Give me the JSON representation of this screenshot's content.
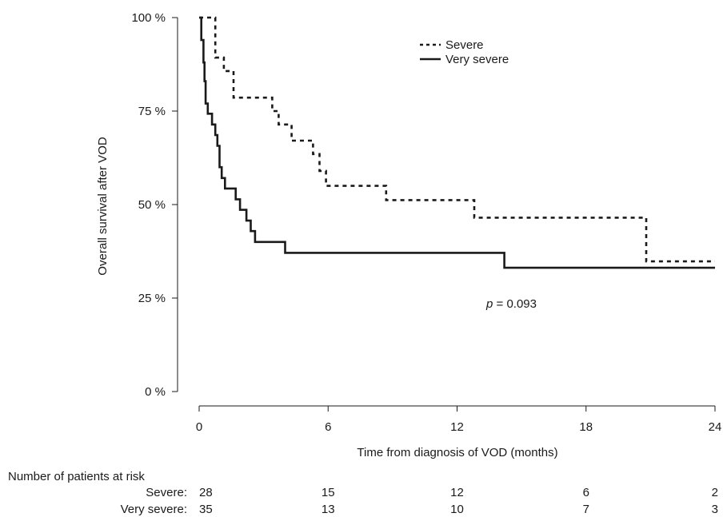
{
  "chart_data": {
    "type": "line",
    "subtype": "kaplan-meier step",
    "ylabel": "Overall survival after VOD",
    "xlabel": "Time from diagnosis of VOD (months)",
    "xlim": [
      0,
      24
    ],
    "ylim": [
      0,
      100
    ],
    "x_ticks": [
      0,
      6,
      12,
      18,
      24
    ],
    "y_ticks": [
      0,
      25,
      50,
      75,
      100
    ],
    "y_tick_labels": [
      "0 %",
      "25 %",
      "50 %",
      "75 %",
      "100 %"
    ],
    "grid": false,
    "legend_position": "top-right",
    "annotation": {
      "p_label": "p",
      "p_rest": " = 0.093"
    },
    "series": [
      {
        "name": "Severe",
        "style": "dashed",
        "points": [
          [
            0,
            100
          ],
          [
            0.75,
            100
          ],
          [
            0.75,
            89.3
          ],
          [
            1.15,
            89.3
          ],
          [
            1.15,
            85.7
          ],
          [
            1.6,
            85.7
          ],
          [
            1.6,
            78.6
          ],
          [
            3.4,
            78.6
          ],
          [
            3.4,
            75
          ],
          [
            3.7,
            75
          ],
          [
            3.7,
            71.4
          ],
          [
            4.3,
            71.4
          ],
          [
            4.3,
            67.1
          ],
          [
            5.3,
            67.1
          ],
          [
            5.3,
            63.5
          ],
          [
            5.6,
            63.5
          ],
          [
            5.6,
            59
          ],
          [
            5.9,
            59
          ],
          [
            5.9,
            55
          ],
          [
            8.7,
            55
          ],
          [
            8.7,
            51.2
          ],
          [
            12.8,
            51.2
          ],
          [
            12.8,
            46.5
          ],
          [
            20.8,
            46.5
          ],
          [
            20.8,
            34.8
          ],
          [
            24,
            34.8
          ]
        ]
      },
      {
        "name": "Very severe",
        "style": "solid",
        "points": [
          [
            0,
            100
          ],
          [
            0.1,
            100
          ],
          [
            0.1,
            94
          ],
          [
            0.2,
            94
          ],
          [
            0.2,
            88
          ],
          [
            0.25,
            88
          ],
          [
            0.25,
            83
          ],
          [
            0.3,
            83
          ],
          [
            0.3,
            77
          ],
          [
            0.4,
            77
          ],
          [
            0.4,
            74.3
          ],
          [
            0.6,
            74.3
          ],
          [
            0.6,
            71.4
          ],
          [
            0.75,
            71.4
          ],
          [
            0.75,
            68.6
          ],
          [
            0.85,
            68.6
          ],
          [
            0.85,
            65.7
          ],
          [
            0.95,
            65.7
          ],
          [
            0.95,
            60
          ],
          [
            1.05,
            60
          ],
          [
            1.05,
            57.1
          ],
          [
            1.2,
            57.1
          ],
          [
            1.2,
            54.3
          ],
          [
            1.7,
            54.3
          ],
          [
            1.7,
            51.4
          ],
          [
            1.9,
            51.4
          ],
          [
            1.9,
            48.6
          ],
          [
            2.2,
            48.6
          ],
          [
            2.2,
            45.7
          ],
          [
            2.4,
            45.7
          ],
          [
            2.4,
            42.9
          ],
          [
            2.6,
            42.9
          ],
          [
            2.6,
            40
          ],
          [
            4,
            40
          ],
          [
            4,
            37.1
          ],
          [
            14.2,
            37.1
          ],
          [
            14.2,
            33.1
          ],
          [
            24,
            33.1
          ]
        ]
      }
    ],
    "risk_table": {
      "title": "Number of patients at risk",
      "rows": [
        {
          "label": "Severe:",
          "values": [
            28,
            15,
            12,
            6,
            2
          ]
        },
        {
          "label": "Very severe:",
          "values": [
            35,
            13,
            10,
            7,
            3
          ]
        }
      ]
    }
  }
}
